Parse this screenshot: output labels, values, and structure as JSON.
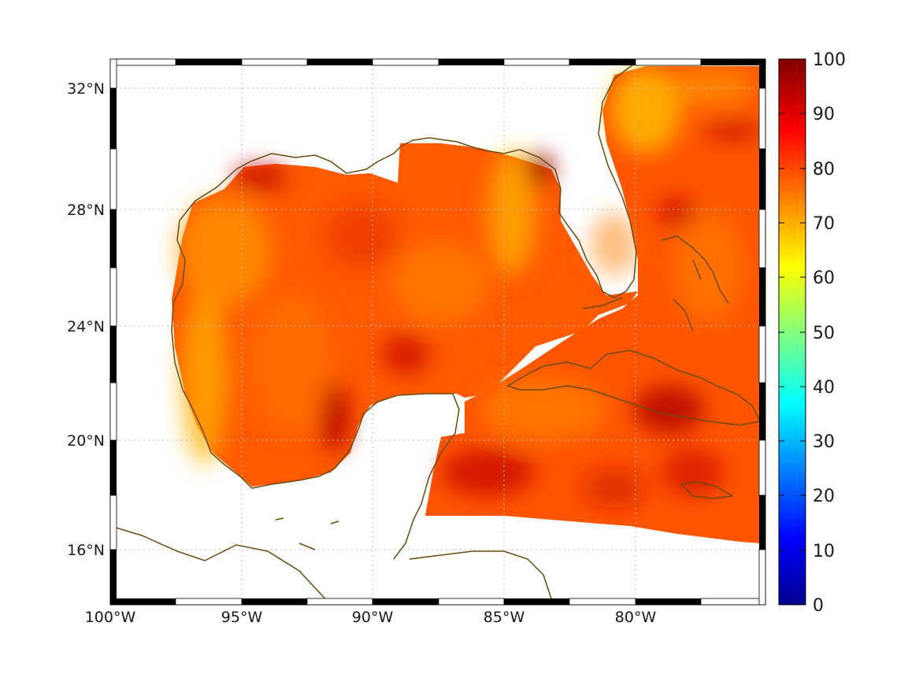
{
  "chart_data": {
    "type": "heatmap",
    "title": "",
    "xlabel": "",
    "ylabel": "",
    "x_ticks": [
      "100°W",
      "95°W",
      "90°W",
      "85°W",
      "80°W"
    ],
    "y_ticks": [
      "32°N",
      "28°N",
      "24°N",
      "20°N",
      "16°N"
    ],
    "lon_range": [
      -100,
      -75
    ],
    "lat_range": [
      14.3,
      33
    ],
    "colorbar": {
      "ticks": [
        "100",
        "90",
        "80",
        "70",
        "60",
        "50",
        "40",
        "30",
        "20",
        "10",
        "0"
      ],
      "range": [
        0,
        100
      ],
      "colormap": "jet"
    },
    "grid": true,
    "coastline_color": "#6b4a10",
    "field_value_range": [
      70,
      98
    ]
  }
}
